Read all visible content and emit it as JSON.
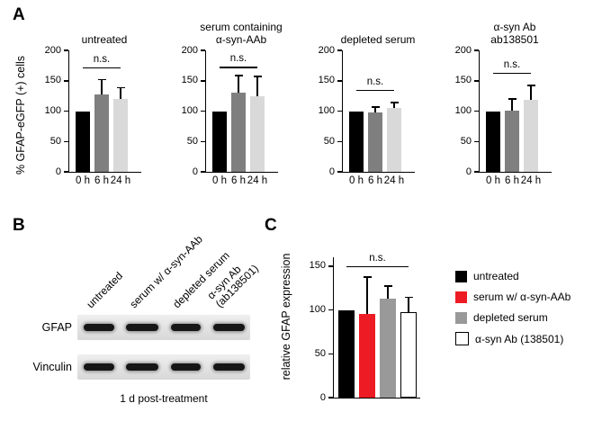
{
  "panels": {
    "a": "A",
    "b": "B",
    "c": "C"
  },
  "panel_a": {
    "ylabel": "% GFAP-eGFP (+) cells"
  },
  "panel_b": {
    "row_labels": [
      "GFAP",
      "Vinculin"
    ],
    "col_labels": [
      "untreated",
      "serum w/ α-syn-AAb",
      "depleted serum",
      "α-syn Ab\n(ab138501)"
    ],
    "caption": "1 d post-treatment",
    "lanes_per_blot": 4
  },
  "panel_c": {
    "ylabel": "relative GFAP expression"
  },
  "colors": {
    "bar_black": "#000000",
    "bar_dark_gray": "#7f7f7f",
    "bar_light_gray": "#d9d9d9",
    "bar_red": "#ed1c24",
    "bar_gray": "#999999",
    "bar_white": "#ffffff"
  },
  "chart_data": [
    {
      "type": "bar",
      "title": "untreated",
      "ylabel": "% GFAP-eGFP (+) cells",
      "categories": [
        "0 h",
        "6 h",
        "24 h"
      ],
      "values": [
        100,
        128,
        120
      ],
      "errors": [
        0,
        25,
        20
      ],
      "colors": [
        "#000000",
        "#7f7f7f",
        "#d9d9d9"
      ],
      "ylim": [
        0,
        200
      ],
      "yticks": [
        0,
        50,
        100,
        150,
        200
      ],
      "significance": {
        "label": "n.s.",
        "from": 0,
        "to": 2,
        "y": 172
      }
    },
    {
      "type": "bar",
      "title": "serum containing\nα-syn-AAb",
      "ylabel": "% GFAP-eGFP (+) cells",
      "categories": [
        "0 h",
        "6 h",
        "24 h"
      ],
      "values": [
        100,
        130,
        125
      ],
      "errors": [
        0,
        30,
        33
      ],
      "colors": [
        "#000000",
        "#7f7f7f",
        "#d9d9d9"
      ],
      "ylim": [
        0,
        200
      ],
      "yticks": [
        0,
        50,
        100,
        150,
        200
      ],
      "significance": {
        "label": "n.s.",
        "from": 0,
        "to": 2,
        "y": 173
      }
    },
    {
      "type": "bar",
      "title": "depleted serum",
      "ylabel": "% GFAP-eGFP (+) cells",
      "categories": [
        "0 h",
        "6 h",
        "24 h"
      ],
      "values": [
        100,
        98,
        105
      ],
      "errors": [
        0,
        10,
        10
      ],
      "colors": [
        "#000000",
        "#7f7f7f",
        "#d9d9d9"
      ],
      "ylim": [
        0,
        200
      ],
      "yticks": [
        0,
        50,
        100,
        150,
        200
      ],
      "significance": {
        "label": "n.s.",
        "from": 0,
        "to": 2,
        "y": 135
      }
    },
    {
      "type": "bar",
      "title": "α-syn Ab\nab138501",
      "ylabel": "% GFAP-eGFP (+) cells",
      "categories": [
        "0 h",
        "6 h",
        "24 h"
      ],
      "values": [
        100,
        101,
        118
      ],
      "errors": [
        0,
        20,
        25
      ],
      "colors": [
        "#000000",
        "#7f7f7f",
        "#d9d9d9"
      ],
      "ylim": [
        0,
        200
      ],
      "yticks": [
        0,
        50,
        100,
        150,
        200
      ],
      "significance": {
        "label": "n.s.",
        "from": 0,
        "to": 2,
        "y": 163
      }
    },
    {
      "type": "bar",
      "title": "",
      "ylabel": "relative GFAP expression",
      "categories": [
        "untreated",
        "serum w/ α-syn-AAb",
        "depleted serum",
        "α-syn Ab (138501)"
      ],
      "values": [
        100,
        95,
        113,
        97
      ],
      "errors": [
        0,
        43,
        15,
        18
      ],
      "colors": [
        "#000000",
        "#ed1c24",
        "#999999",
        "#ffffff"
      ],
      "ylim": [
        0,
        160
      ],
      "yticks": [
        0,
        50,
        100,
        150
      ],
      "significance": {
        "label": "n.s.",
        "from": 0,
        "to": 3,
        "y": 150
      },
      "legend": [
        {
          "label": "untreated",
          "color": "#000000"
        },
        {
          "label": "serum w/ α-syn-AAb",
          "color": "#ed1c24"
        },
        {
          "label": "depleted serum",
          "color": "#999999"
        },
        {
          "label": "α-syn Ab (138501)",
          "color": "#ffffff"
        }
      ]
    }
  ]
}
